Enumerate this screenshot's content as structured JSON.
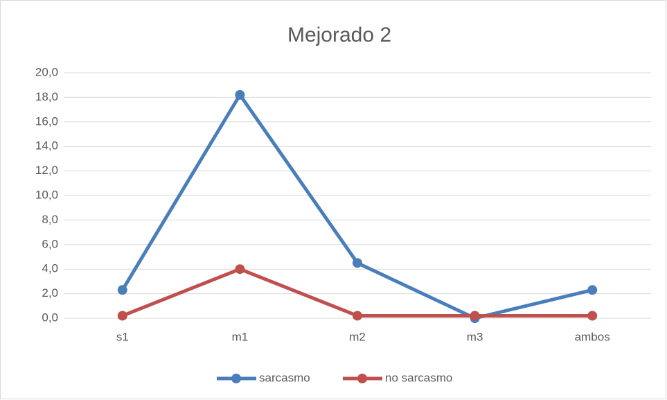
{
  "chart_data": {
    "type": "line",
    "title": "Mejorado 2",
    "categories": [
      "s1",
      "m1",
      "m2",
      "m3",
      "ambos"
    ],
    "series": [
      {
        "name": "sarcasmo",
        "color": "#4a7ebb",
        "values": [
          2.3,
          18.2,
          4.5,
          0.0,
          2.3
        ]
      },
      {
        "name": "no sarcasmo",
        "color": "#c0504d",
        "values": [
          0.2,
          4.0,
          0.2,
          0.2,
          0.2
        ]
      }
    ],
    "ylim": [
      0,
      20
    ],
    "yticks": [
      {
        "value": 0,
        "label": "0,0"
      },
      {
        "value": 2,
        "label": "2,0"
      },
      {
        "value": 4,
        "label": "4,0"
      },
      {
        "value": 6,
        "label": "6,0"
      },
      {
        "value": 8,
        "label": "8,0"
      },
      {
        "value": 10,
        "label": "10,0"
      },
      {
        "value": 12,
        "label": "12,0"
      },
      {
        "value": 14,
        "label": "14,0"
      },
      {
        "value": 16,
        "label": "16,0"
      },
      {
        "value": 18,
        "label": "18,0"
      },
      {
        "value": 20,
        "label": "20,0"
      }
    ],
    "grid": true,
    "legend": "bottom"
  }
}
